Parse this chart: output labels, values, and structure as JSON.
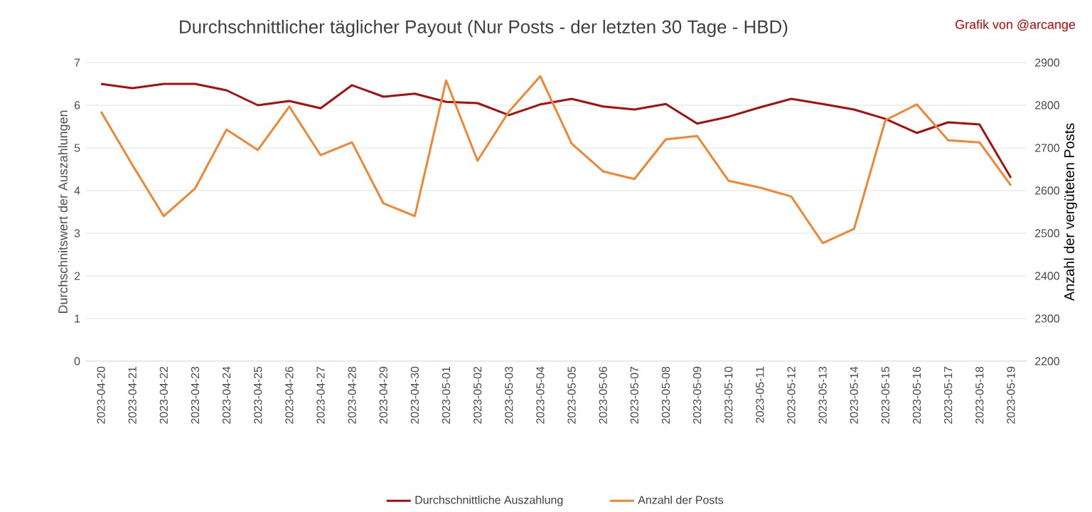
{
  "chart_data": {
    "type": "line",
    "title": "Durchschnittlicher täglicher Payout (Nur Posts - der letzten 30 Tage - HBD)",
    "ylabel": "Durchschnitswert der Auszahlungen",
    "y2label": "Anzahl der vergüteten  Posts",
    "annotations": [
      "Grafik von @arcange"
    ],
    "categories": [
      "2023-04-20",
      "2023-04-21",
      "2023-04-22",
      "2023-04-23",
      "2023-04-24",
      "2023-04-25",
      "2023-04-26",
      "2023-04-27",
      "2023-04-28",
      "2023-04-29",
      "2023-04-30",
      "2023-05-01",
      "2023-05-02",
      "2023-05-03",
      "2023-05-04",
      "2023-05-05",
      "2023-05-06",
      "2023-05-07",
      "2023-05-08",
      "2023-05-09",
      "2023-05-10",
      "2023-05-11",
      "2023-05-12",
      "2023-05-13",
      "2023-05-14",
      "2023-05-15",
      "2023-05-16",
      "2023-05-17",
      "2023-05-18",
      "2023-05-19"
    ],
    "series": [
      {
        "name": "Durchschnittliche Auszahlung",
        "color": "#a50f0f",
        "values": [
          6.5,
          6.4,
          6.5,
          6.5,
          6.35,
          6.0,
          6.1,
          5.93,
          6.47,
          6.2,
          6.27,
          6.08,
          6.05,
          5.77,
          6.02,
          6.15,
          5.97,
          5.9,
          6.03,
          5.57,
          5.73,
          5.95,
          6.15,
          6.03,
          5.9,
          5.68,
          5.35,
          5.6,
          5.55,
          4.3
        ]
      },
      {
        "name": "Anzahl der Posts",
        "color": "#f28530",
        "axis": "y2",
        "values": [
          2785,
          2660,
          2540,
          2605,
          2743,
          2695,
          2797,
          2683,
          2713,
          2570,
          2540,
          2858,
          2670,
          2785,
          2868,
          2710,
          2645,
          2627,
          2720,
          2728,
          2623,
          2607,
          2586,
          2477,
          2510,
          2765,
          2802,
          2718,
          2713,
          2612
        ]
      }
    ],
    "ylim": [
      0,
      7
    ],
    "yticks": [
      0,
      1,
      2,
      3,
      4,
      5,
      6,
      7
    ],
    "y2lim": [
      2200,
      2900
    ],
    "y2ticks": [
      2200,
      2300,
      2400,
      2500,
      2600,
      2700,
      2800,
      2900
    ],
    "grid": "y",
    "legend": "bottom",
    "marker": "none",
    "line_style": "solid"
  }
}
